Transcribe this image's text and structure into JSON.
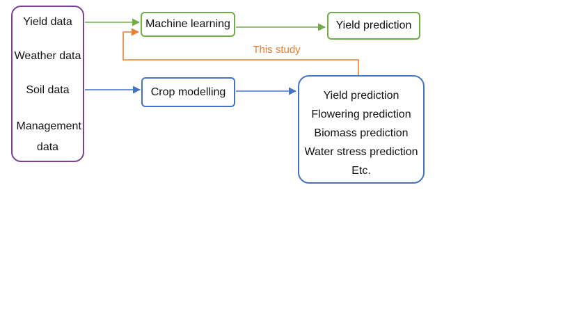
{
  "diagram": {
    "inputs": {
      "items": [
        "Yield data",
        "Weather data",
        "Soil data",
        "Management data"
      ]
    },
    "machine_learning": {
      "label": "Machine learning"
    },
    "yield_prediction": {
      "label": "Yield prediction"
    },
    "crop_modelling": {
      "label": "Crop modelling"
    },
    "outputs": {
      "items": [
        "Yield prediction",
        "Flowering prediction",
        "Biomass prediction",
        "Water stress prediction",
        "Etc."
      ]
    },
    "this_study": {
      "label": "This study"
    },
    "colors": {
      "inputs_border": "#7a3f97",
      "ml_path": "#70ad47",
      "crop_path": "#4472c4",
      "this_study": "#ed7d31"
    }
  }
}
